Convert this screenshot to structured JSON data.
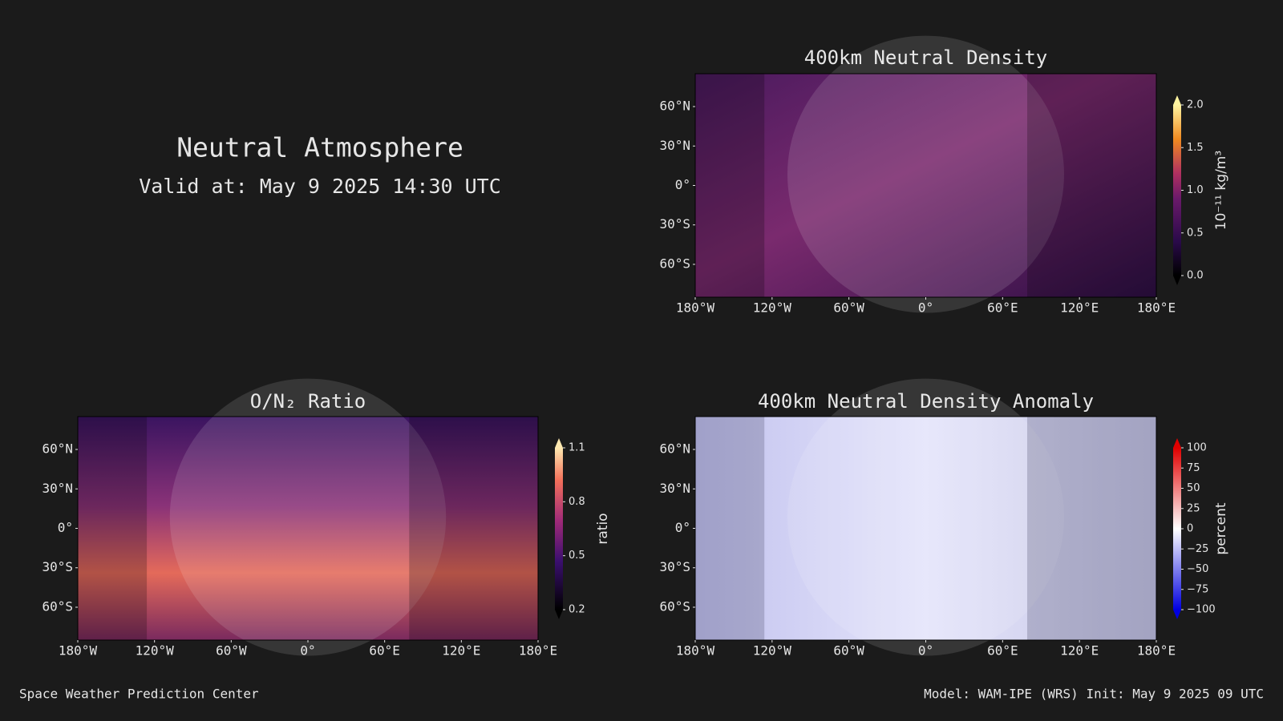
{
  "header": {
    "title": "Neutral Atmosphere",
    "valid": "Valid at: May 9 2025 14:30 UTC"
  },
  "panels": [
    {
      "title": "400km Neutral Density",
      "lon_range": [
        -180,
        180
      ],
      "lat_range": [
        -85,
        85
      ],
      "lon_ticks": [
        {
          "value": -180,
          "label": "180°W"
        },
        {
          "value": -120,
          "label": "120°W"
        },
        {
          "value": -60,
          "label": "60°W"
        },
        {
          "value": 0,
          "label": "0°"
        },
        {
          "value": 60,
          "label": "60°E"
        },
        {
          "value": 120,
          "label": "120°E"
        },
        {
          "value": 180,
          "label": "180°E"
        }
      ],
      "lat_ticks": [
        {
          "value": 60,
          "label": "60°N"
        },
        {
          "value": 30,
          "label": "30°N"
        },
        {
          "value": 0,
          "label": "0°"
        },
        {
          "value": -30,
          "label": "30°S"
        },
        {
          "value": -60,
          "label": "60°S"
        }
      ],
      "colorbar": {
        "label": "10⁻¹¹ kg/m³",
        "range": [
          0,
          2
        ],
        "ticks": [
          {
            "value": 0,
            "label": "0.0"
          },
          0.5,
          {
            "value": 1,
            "label": "1.0"
          },
          1.5,
          {
            "value": 2,
            "label": "2.0"
          }
        ]
      }
    },
    {
      "title": "O/N₂ Ratio",
      "lon_range": [
        -180,
        180
      ],
      "lat_range": [
        -85,
        85
      ],
      "lon_ticks": [
        {
          "value": -180,
          "label": "180°W"
        },
        {
          "value": -120,
          "label": "120°W"
        },
        {
          "value": -60,
          "label": "60°W"
        },
        {
          "value": 0,
          "label": "0°"
        },
        {
          "value": 60,
          "label": "60°E"
        },
        {
          "value": 120,
          "label": "120°E"
        },
        {
          "value": 180,
          "label": "180°E"
        }
      ],
      "lat_ticks": [
        {
          "value": 60,
          "label": "60°N"
        },
        {
          "value": 30,
          "label": "30°N"
        },
        {
          "value": 0,
          "label": "0°"
        },
        {
          "value": -30,
          "label": "30°S"
        },
        {
          "value": -60,
          "label": "60°S"
        }
      ],
      "colorbar": {
        "label": "ratio",
        "range": [
          0.2,
          1.1
        ],
        "ticks": [
          0.2,
          0.5,
          0.8,
          1.1
        ]
      }
    },
    {
      "title": "400km Neutral Density Anomaly",
      "lon_range": [
        -180,
        180
      ],
      "lat_range": [
        -85,
        85
      ],
      "lon_ticks": [
        {
          "value": -180,
          "label": "180°W"
        },
        {
          "value": -120,
          "label": "120°W"
        },
        {
          "value": -60,
          "label": "60°W"
        },
        {
          "value": 0,
          "label": "0°"
        },
        {
          "value": 60,
          "label": "60°E"
        },
        {
          "value": 120,
          "label": "120°E"
        },
        {
          "value": 180,
          "label": "180°E"
        }
      ],
      "lat_ticks": [
        {
          "value": 60,
          "label": "60°N"
        },
        {
          "value": 30,
          "label": "30°N"
        },
        {
          "value": 0,
          "label": "0°"
        },
        {
          "value": -30,
          "label": "30°S"
        },
        {
          "value": -60,
          "label": "60°S"
        }
      ],
      "colorbar": {
        "label": "percent",
        "range": [
          -100,
          100
        ],
        "ticks": [
          100,
          75,
          50,
          25,
          0,
          {
            "value": -25,
            "label": "−25"
          },
          {
            "value": -50,
            "label": "−50"
          },
          {
            "value": -75,
            "label": "−75"
          },
          {
            "value": -100,
            "label": "−100"
          }
        ]
      }
    }
  ],
  "footer": {
    "left": "Space Weather Prediction Center",
    "right": "Model: WAM-IPE (WRS) Init: May 9 2025 09 UTC"
  }
}
